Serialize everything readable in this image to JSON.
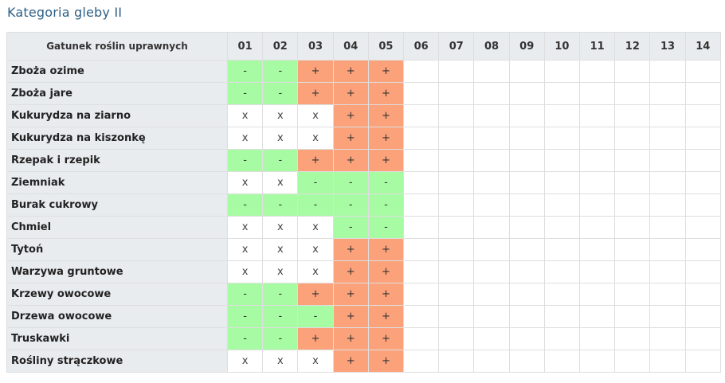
{
  "title": "Kategoria gleby II",
  "table": {
    "crop_header": "Gatunek roślin uprawnych",
    "columns": [
      "01",
      "02",
      "03",
      "04",
      "05",
      "06",
      "07",
      "08",
      "09",
      "10",
      "11",
      "12",
      "13",
      "14"
    ],
    "rows": [
      {
        "crop": "Zboża ozime",
        "values": [
          "-",
          "-",
          "+",
          "+",
          "+",
          "",
          "",
          "",
          "",
          "",
          "",
          "",
          "",
          ""
        ]
      },
      {
        "crop": "Zboża jare",
        "values": [
          "-",
          "-",
          "+",
          "+",
          "+",
          "",
          "",
          "",
          "",
          "",
          "",
          "",
          "",
          ""
        ]
      },
      {
        "crop": "Kukurydza na ziarno",
        "values": [
          "x",
          "x",
          "x",
          "+",
          "+",
          "",
          "",
          "",
          "",
          "",
          "",
          "",
          "",
          ""
        ]
      },
      {
        "crop": "Kukurydza na kiszonkę",
        "values": [
          "x",
          "x",
          "x",
          "+",
          "+",
          "",
          "",
          "",
          "",
          "",
          "",
          "",
          "",
          ""
        ]
      },
      {
        "crop": "Rzepak i rzepik",
        "values": [
          "-",
          "-",
          "+",
          "+",
          "+",
          "",
          "",
          "",
          "",
          "",
          "",
          "",
          "",
          ""
        ]
      },
      {
        "crop": "Ziemniak",
        "values": [
          "x",
          "x",
          "-",
          "-",
          "-",
          "",
          "",
          "",
          "",
          "",
          "",
          "",
          "",
          ""
        ]
      },
      {
        "crop": "Burak cukrowy",
        "values": [
          "-",
          "-",
          "-",
          "-",
          "-",
          "",
          "",
          "",
          "",
          "",
          "",
          "",
          "",
          ""
        ]
      },
      {
        "crop": "Chmiel",
        "values": [
          "x",
          "x",
          "x",
          "-",
          "-",
          "",
          "",
          "",
          "",
          "",
          "",
          "",
          "",
          ""
        ]
      },
      {
        "crop": "Tytoń",
        "values": [
          "x",
          "x",
          "x",
          "+",
          "+",
          "",
          "",
          "",
          "",
          "",
          "",
          "",
          "",
          ""
        ]
      },
      {
        "crop": "Warzywa gruntowe",
        "values": [
          "x",
          "x",
          "x",
          "+",
          "+",
          "",
          "",
          "",
          "",
          "",
          "",
          "",
          "",
          ""
        ]
      },
      {
        "crop": "Krzewy owocowe",
        "values": [
          "-",
          "-",
          "+",
          "+",
          "+",
          "",
          "",
          "",
          "",
          "",
          "",
          "",
          "",
          ""
        ]
      },
      {
        "crop": "Drzewa owocowe",
        "values": [
          "-",
          "-",
          "-",
          "+",
          "+",
          "",
          "",
          "",
          "",
          "",
          "",
          "",
          "",
          ""
        ]
      },
      {
        "crop": "Truskawki",
        "values": [
          "-",
          "-",
          "+",
          "+",
          "+",
          "",
          "",
          "",
          "",
          "",
          "",
          "",
          "",
          ""
        ]
      },
      {
        "crop": "Rośliny strączkowe",
        "values": [
          "x",
          "x",
          "x",
          "+",
          "+",
          "",
          "",
          "",
          "",
          "",
          "",
          "",
          "",
          ""
        ]
      }
    ]
  },
  "colors": {
    "title": "#2d5f86",
    "minus_cell": "#a7fca3",
    "plus_cell": "#fba27a",
    "header_bg": "#e9ecef"
  }
}
